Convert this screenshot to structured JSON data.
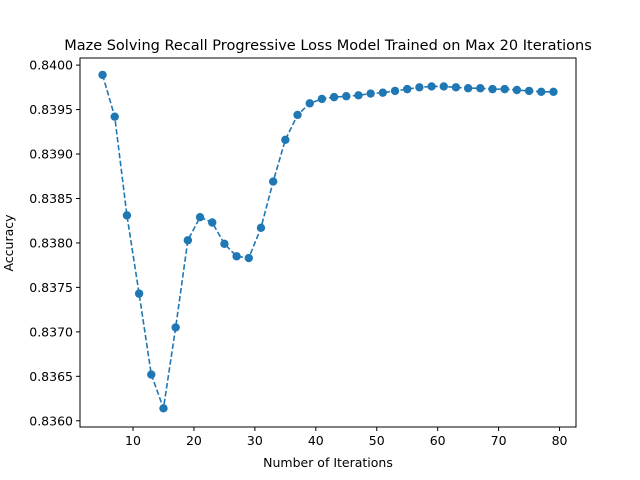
{
  "chart_data": {
    "type": "line",
    "title": "Maze Solving Recall Progressive Loss Model Trained on Max 20 Iterations",
    "xlabel": "Number of Iterations",
    "ylabel": "Accuracy",
    "xlim": [
      1.3,
      82.7
    ],
    "ylim": [
      0.83593,
      0.84008
    ],
    "x_ticks": [
      10,
      20,
      30,
      40,
      50,
      60,
      70,
      80
    ],
    "x_tick_labels": [
      "10",
      "20",
      "30",
      "40",
      "50",
      "60",
      "70",
      "80"
    ],
    "y_ticks": [
      0.836,
      0.8365,
      0.837,
      0.8375,
      0.838,
      0.8385,
      0.839,
      0.8395,
      0.84
    ],
    "y_tick_labels": [
      "0.8360",
      "0.8365",
      "0.8370",
      "0.8375",
      "0.8380",
      "0.8385",
      "0.8390",
      "0.8395",
      "0.8400"
    ],
    "grid": false,
    "series": [
      {
        "color": "#1f77b4",
        "line_style": "dashed",
        "marker": "circle",
        "x": [
          5,
          7,
          9,
          11,
          13,
          15,
          17,
          19,
          21,
          23,
          25,
          27,
          29,
          31,
          33,
          35,
          37,
          39,
          41,
          43,
          45,
          47,
          49,
          51,
          53,
          55,
          57,
          59,
          61,
          63,
          65,
          67,
          69,
          71,
          73,
          75,
          77,
          79
        ],
        "y": [
          0.83989,
          0.83942,
          0.83831,
          0.83743,
          0.83652,
          0.83614,
          0.83705,
          0.83803,
          0.83829,
          0.83823,
          0.83799,
          0.83785,
          0.83783,
          0.83817,
          0.83869,
          0.83916,
          0.83944,
          0.83957,
          0.83962,
          0.83964,
          0.83965,
          0.83966,
          0.83968,
          0.83969,
          0.83971,
          0.83973,
          0.83975,
          0.83976,
          0.83976,
          0.83975,
          0.83974,
          0.83974,
          0.83973,
          0.83973,
          0.83972,
          0.83971,
          0.8397,
          0.8397
        ]
      }
    ]
  }
}
